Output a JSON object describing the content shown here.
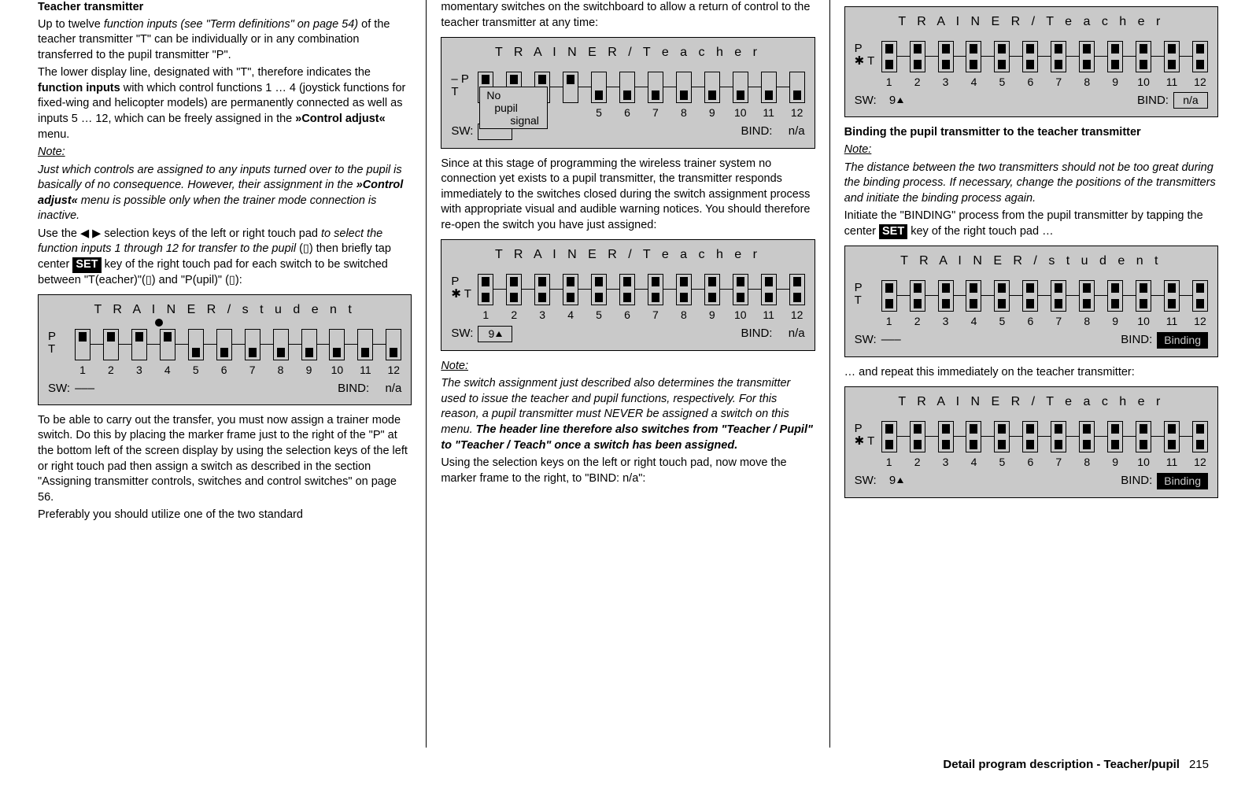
{
  "col1": {
    "heading": "Teacher transmitter",
    "p1a": "Up to twelve ",
    "p1b": "function inputs (see \"Term definitions\" on page 54)",
    "p1c": " of the teacher transmitter \"T\" can be individually or in any combination transferred to the pupil transmitter \"P\".",
    "p2a": "The lower display line, designated with \"T\", therefore indicates the ",
    "p2b": "function inputs",
    "p2c": " with which control functions 1 … 4 (joystick functions for fixed-wing and helicopter models) are permanently connected as well as inputs 5 … 12, which can be freely assigned in the ",
    "p2d": "»Control adjust«",
    "p2e": " menu.",
    "note_label": "Note:",
    "note1a": "Just which controls are assigned to any inputs turned over to the pupil is basically of no consequence. However, their assignment in the ",
    "note1b": "»Control adjust«",
    "note1c": " menu is possible only when the trainer mode connection is inactive.",
    "p3a": "Use the ◀ ▶ selection keys of the left or right touch pad ",
    "p3b": "to select the function inputs 1 through 12 for transfer to the pupil",
    "p3c": " (▯) then briefly tap center ",
    "p3d": "SET",
    "p3e": " key of the right touch pad for each switch to be switched between \"T(eacher)\"(▯) and \"P(upil)\" (▯):",
    "p4": "To be able to carry out the transfer, you must now assign a trainer mode switch. Do this by placing the marker frame just to the right of the \"P\" at the bottom left of the screen display by using the selection keys of the left or right touch pad then assign a switch as described in the section \"Assigning transmitter controls, switches and control switches\" on page 56.",
    "p5": "Preferably you should utilize one of the two standard"
  },
  "col2": {
    "p1": "momentary switches on the switchboard to allow a return of control to the teacher transmitter at any time:",
    "p2": "Since at this stage of programming the wireless trainer system no connection yet exists to a pupil transmitter, the transmitter responds immediately to the switches closed during the switch assignment process with appropriate visual and audible warning notices. You should therefore re-open the switch you have just assigned:",
    "note_label": "Note:",
    "note2a": "The switch assignment just described also determines the transmitter used to issue the teacher and pupil functions, respectively. For this reason, a pupil transmitter must NEVER be assigned a switch on this menu. ",
    "note2b": "The header line therefore also switches from \"Teacher / Pupil\" to \"Teacher / Teach\" once a switch has been assigned.",
    "p3": "Using the selection keys on the left or right touch pad, now move the marker frame to the right, to \"BIND: n/a\":"
  },
  "col3": {
    "heading": "Binding the pupil transmitter to the teacher transmitter",
    "note_label": "Note:",
    "note3": "The distance between the two transmitters should not be too great during the binding process. If necessary, change the positions of the transmitters and initiate the binding process again.",
    "p1a": "Initiate the \"BINDING\" process from the pupil transmitter by tapping the center ",
    "p1b": "SET",
    "p1c": " key of the right touch pad …",
    "p2": "… and repeat this immediately on the teacher transmitter:"
  },
  "lcd": {
    "title_student": "T R A I N E R    / s t u d e n t",
    "title_teacher": "T R A I N E R    / T e a c h e r",
    "row_p": "P",
    "row_mp": "– P",
    "row_t": "T",
    "row_st": "✱ T",
    "numbers": [
      "1",
      "2",
      "3",
      "4",
      "5",
      "6",
      "7",
      "8",
      "9",
      "10",
      "11",
      "12"
    ],
    "numbers_5_12": [
      "5",
      "6",
      "7",
      "8",
      "9",
      "10",
      "11",
      "12"
    ],
    "sw_label": "SW:",
    "bind_label": "BIND:",
    "sw_dashes": "–––",
    "sw_9": "9",
    "bind_na": "n/a",
    "bind_binding": "Binding",
    "popup_l1": "No",
    "popup_l2": "pupil",
    "popup_l3": "signal"
  },
  "display1": {
    "p_ticks": [
      true,
      true,
      true,
      true,
      false,
      false,
      false,
      false,
      false,
      false,
      false,
      false
    ],
    "t_ticks": [
      false,
      false,
      false,
      false,
      true,
      true,
      true,
      true,
      true,
      true,
      true,
      true
    ],
    "dot_index": 4
  },
  "display2": {
    "p_ticks": [
      true,
      true,
      true,
      true,
      false,
      false,
      false,
      false,
      false,
      false,
      false,
      false
    ],
    "t_ticks": [
      false,
      false,
      false,
      false,
      true,
      true,
      true,
      true,
      true,
      true,
      true,
      true
    ]
  },
  "display_all_top": {
    "p_ticks": [
      true,
      true,
      true,
      true,
      true,
      true,
      true,
      true,
      true,
      true,
      true,
      true
    ],
    "t_ticks": [
      true,
      true,
      true,
      true,
      true,
      true,
      true,
      true,
      true,
      true,
      true,
      true
    ]
  },
  "footer": {
    "title": "Detail program description - Teacher/pupil",
    "page": "215"
  }
}
